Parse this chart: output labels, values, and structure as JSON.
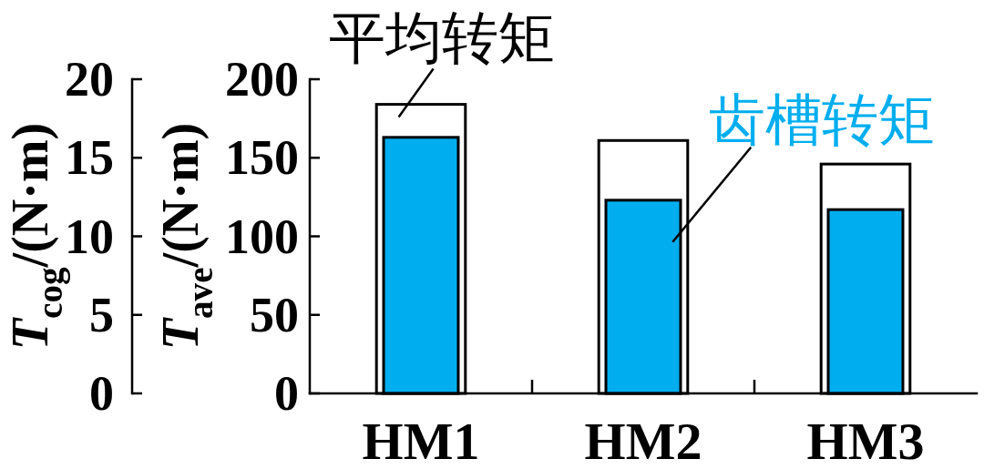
{
  "chart_data": {
    "type": "bar",
    "categories": [
      "HM1",
      "HM2",
      "HM3"
    ],
    "series": [
      {
        "name": "平均转矩",
        "color": "#ffffff",
        "values": [
          184,
          161,
          146
        ]
      },
      {
        "name": "齿槽转矩",
        "color": "#00aeef",
        "values": [
          16.3,
          12.3,
          11.7
        ],
        "axis": "y2"
      }
    ],
    "ylabel": "*T*$_{ave}$/(N·m)",
    "y2label": "*T*$_{cog}$/(N·m)",
    "ylim": [
      0,
      200
    ],
    "yticks": [
      0,
      50,
      100,
      150,
      200
    ],
    "y2lim": [
      0,
      20
    ],
    "y2ticks": [
      0,
      5,
      10,
      15,
      20
    ]
  }
}
